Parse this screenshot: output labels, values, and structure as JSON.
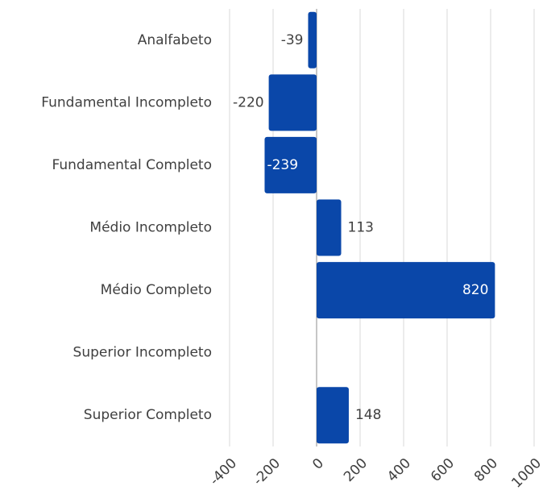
{
  "chart_data": {
    "type": "bar",
    "orientation": "horizontal",
    "categories": [
      "Analfabeto",
      "Fundamental Incompleto",
      "Fundamental Completo",
      "Médio Incompleto",
      "Médio Completo",
      "Superior Incompleto",
      "Superior Completo"
    ],
    "values": [
      -39,
      -220,
      -239,
      113,
      820,
      null,
      148
    ],
    "color": "#0a47a9",
    "xlim": [
      -400,
      1000
    ],
    "xticks": [
      -400,
      -200,
      0,
      200,
      400,
      600,
      800,
      1000
    ],
    "grid": true
  }
}
